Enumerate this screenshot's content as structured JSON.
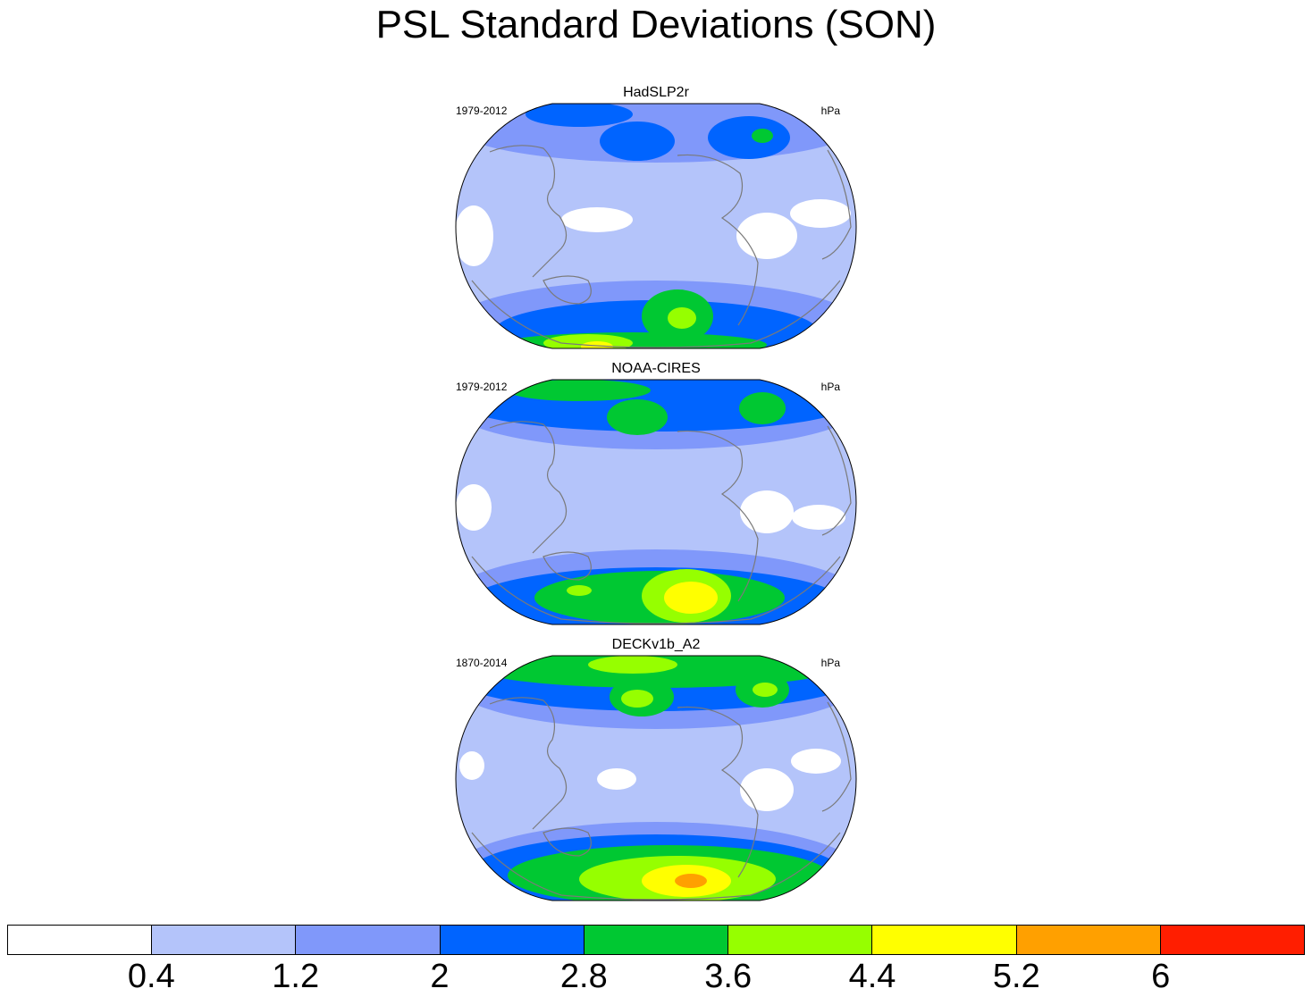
{
  "title": "PSL Standard Deviations (SON)",
  "colors": {
    "levels": [
      "#ffffff",
      "#b4c4fa",
      "#8098fa",
      "#0064ff",
      "#00c832",
      "#96ff00",
      "#ffff00",
      "#ffa000",
      "#ff1e00"
    ],
    "coast": "#7a7a7a"
  },
  "panels": [
    {
      "name": "HadSLP2r",
      "period": "1979-2012",
      "units": "hPa",
      "map_data": {
        "projection": "Robinson",
        "center_lon": 180,
        "level_index_regions": [
          {
            "region": "tropics-background",
            "level": 1
          },
          {
            "region": "western-tropical-pacific",
            "level": 0
          },
          {
            "region": "south-america-interior",
            "level": 0
          },
          {
            "region": "africa-interior",
            "level": 0
          },
          {
            "region": "north-pacific-aleutian",
            "level": 3
          },
          {
            "region": "north-atlantic-iceland",
            "level": 3
          },
          {
            "region": "southern-ocean-ring",
            "level": 2
          },
          {
            "region": "southern-ocean-core",
            "level": 3
          },
          {
            "region": "amundsen-sea-low",
            "level": 4
          },
          {
            "region": "amundsen-sea-low-center",
            "level": 5
          },
          {
            "region": "antarctic-coast",
            "level": 5
          },
          {
            "region": "antarctic-interior",
            "level": 6
          }
        ]
      }
    },
    {
      "name": "NOAA-CIRES",
      "period": "1979-2012",
      "units": "hPa",
      "map_data": {
        "projection": "Robinson",
        "center_lon": 180,
        "level_index_regions": [
          {
            "region": "tropics-background",
            "level": 1
          },
          {
            "region": "south-america-interior",
            "level": 0
          },
          {
            "region": "africa-interior",
            "level": 0
          },
          {
            "region": "north-pacific-aleutian",
            "level": 4
          },
          {
            "region": "north-atlantic-iceland",
            "level": 4
          },
          {
            "region": "arctic",
            "level": 4
          },
          {
            "region": "southern-ocean-ring",
            "level": 3
          },
          {
            "region": "southern-ocean-core",
            "level": 4
          },
          {
            "region": "amundsen-sea-low",
            "level": 5
          },
          {
            "region": "amundsen-sea-low-center",
            "level": 6
          }
        ]
      }
    },
    {
      "name": "DECKv1b_A2",
      "period": "1870-2014",
      "units": "hPa",
      "map_data": {
        "projection": "Robinson",
        "center_lon": 180,
        "level_index_regions": [
          {
            "region": "tropics-background",
            "level": 1
          },
          {
            "region": "western-tropical-pacific",
            "level": 0
          },
          {
            "region": "south-america-interior",
            "level": 0
          },
          {
            "region": "north-pacific-aleutian",
            "level": 5
          },
          {
            "region": "north-atlantic-iceland",
            "level": 5
          },
          {
            "region": "arctic",
            "level": 4
          },
          {
            "region": "southern-ocean-ring",
            "level": 3
          },
          {
            "region": "southern-ocean-core",
            "level": 4
          },
          {
            "region": "amundsen-sea-low",
            "level": 6
          },
          {
            "region": "amundsen-sea-low-center",
            "level": 7
          }
        ]
      }
    }
  ],
  "colorbar": {
    "labels": [
      "0.4",
      "1.2",
      "2",
      "2.8",
      "3.6",
      "4.4",
      "5.2",
      "6"
    ]
  }
}
